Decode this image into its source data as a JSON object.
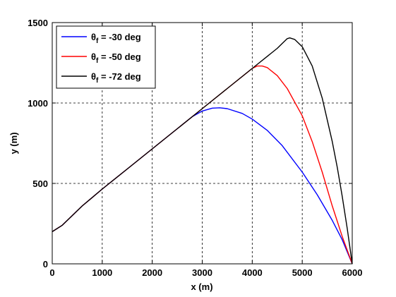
{
  "chart_data": {
    "type": "line",
    "title": "",
    "xlabel": "x (m)",
    "ylabel": "y (m)",
    "xlim": [
      0,
      6000
    ],
    "ylim": [
      0,
      1500
    ],
    "xticks": [
      "0",
      "1000",
      "2000",
      "3000",
      "4000",
      "5000",
      "6000"
    ],
    "yticks": [
      "0",
      "500",
      "1000",
      "1500"
    ],
    "xtick_values": [
      0,
      1000,
      2000,
      3000,
      4000,
      5000,
      6000
    ],
    "ytick_values": [
      0,
      500,
      1000,
      1500
    ],
    "grid": true,
    "grid_style": "dashed",
    "legend_position": "top-left",
    "series": [
      {
        "name": "θf = -30 deg",
        "name_parts": {
          "symbol": "θ",
          "subscript": "f",
          "rest": " = -30 deg"
        },
        "color": "#0000ff",
        "x": [
          0,
          200,
          400,
          600,
          1000,
          1500,
          2000,
          2500,
          2800,
          3000,
          3200,
          3350,
          3500,
          3800,
          4000,
          4300,
          4600,
          5000,
          5300,
          5600,
          5800,
          6000
        ],
        "y": [
          200,
          240,
          300,
          360,
          465,
          590,
          715,
          840,
          915,
          950,
          968,
          970,
          965,
          935,
          900,
          830,
          735,
          570,
          430,
          270,
          150,
          0
        ]
      },
      {
        "name": "θf = -50 deg",
        "name_parts": {
          "symbol": "θ",
          "subscript": "f",
          "rest": " = -50 deg"
        },
        "color": "#ff0000",
        "x": [
          0,
          200,
          400,
          600,
          1000,
          1500,
          2000,
          2500,
          3000,
          3500,
          3900,
          4000,
          4100,
          4200,
          4300,
          4500,
          4700,
          5000,
          5200,
          5400,
          5600,
          5800,
          6000
        ],
        "y": [
          200,
          240,
          300,
          360,
          465,
          590,
          715,
          840,
          965,
          1090,
          1190,
          1215,
          1230,
          1230,
          1220,
          1170,
          1090,
          920,
          760,
          570,
          360,
          170,
          0
        ]
      },
      {
        "name": "θf = -72 deg",
        "name_parts": {
          "symbol": "θ",
          "subscript": "f",
          "rest": " = -72 deg"
        },
        "color": "#000000",
        "x": [
          0,
          200,
          400,
          600,
          1000,
          1500,
          2000,
          2500,
          3000,
          3500,
          4000,
          4500,
          4600,
          4700,
          4750,
          4850,
          5000,
          5200,
          5400,
          5600,
          5700,
          5800,
          5900,
          6000
        ],
        "y": [
          200,
          240,
          300,
          360,
          465,
          590,
          715,
          840,
          965,
          1090,
          1215,
          1340,
          1370,
          1400,
          1405,
          1395,
          1350,
          1230,
          1030,
          760,
          600,
          420,
          220,
          0
        ]
      }
    ]
  }
}
